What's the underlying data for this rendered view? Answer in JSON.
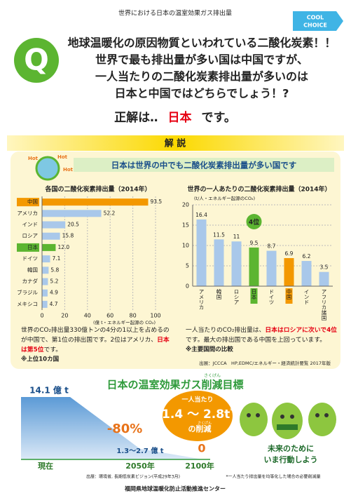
{
  "header": {
    "title": "世界における日本の温室効果ガス排出量",
    "logo": [
      "COOL",
      "CHOICE"
    ]
  },
  "question": {
    "mark": "Q",
    "lines": [
      "地球温暖化の原因物質といわれている二酸化炭素！！",
      "世界で最も排出量が多い国は中国ですが、",
      "一人当たりの二酸化炭素排出量が多いのは",
      "日本と中国ではどちらでしょう！?"
    ]
  },
  "answer": {
    "prefix": "正解は‥",
    "highlight": "日本",
    "suffix": "です。"
  },
  "section1": {
    "heading": "解 説",
    "subtitle": "日本は世界の中でも二酸化炭素排出量が多い国です",
    "hot": [
      "Hot",
      "Hot",
      "Hot"
    ]
  },
  "chart_data": [
    {
      "type": "bar",
      "orientation": "horizontal",
      "title": "各国の二酸化炭素排出量（2014年）",
      "categories": [
        "中国",
        "アメリカ",
        "インド",
        "ロシア",
        "日本",
        "ドイツ",
        "韓国",
        "カナダ",
        "ブラジル",
        "メキシコ"
      ],
      "values": [
        93.5,
        52.2,
        20.5,
        15.8,
        12.0,
        7.1,
        5.8,
        5.2,
        4.9,
        4.7
      ],
      "value_labels": [
        "93.5",
        "52.2",
        "20.5",
        "15.8",
        "12.0",
        "7.1",
        "5.8",
        "5.2",
        "4.9",
        "4.7"
      ],
      "colors": [
        "#f39800",
        "#a9c8ea",
        "#a9c8ea",
        "#a9c8ea",
        "#5cb531",
        "#a9c8ea",
        "#a9c8ea",
        "#a9c8ea",
        "#a9c8ea",
        "#a9c8ea"
      ],
      "xlim": [
        0,
        100
      ],
      "xticks": [
        0,
        20,
        40,
        60,
        80,
        100
      ],
      "xlabel": "(億 t・エネルギー起源の CO₂)",
      "grid": true
    },
    {
      "type": "bar",
      "orientation": "vertical",
      "title": "世界の一人あたりの二酸化炭素排出量（2014年）",
      "ylabel": "(t/人・エネルギー起源のCO₂)",
      "categories": [
        "アメリカ",
        "韓国",
        "ロシア",
        "日本",
        "ドイツ",
        "中国",
        "インド",
        "アフリカ諸国"
      ],
      "values": [
        16.4,
        11.5,
        11,
        9.5,
        8.7,
        6.9,
        6.2,
        3.5
      ],
      "colors": [
        "#a9c8ea",
        "#a9c8ea",
        "#a9c8ea",
        "#5cb531",
        "#a9c8ea",
        "#f39800",
        "#a9c8ea",
        "#a9c8ea"
      ],
      "ylim": [
        0,
        20
      ],
      "yticks": [
        0,
        5,
        10,
        15,
        20
      ],
      "grid": true,
      "annotation": {
        "text": "4位",
        "category": "日本"
      }
    }
  ],
  "notes": {
    "left": [
      [
        {
          "text": "世界のCO₂排出量330億トンの4分の1以上を占めるの"
        }
      ],
      [
        {
          "text": "が中国で、第1位の排出国です。2位はアメリカ、"
        },
        {
          "text": "日本",
          "emphasis": true
        }
      ],
      [
        {
          "text": "は第5位",
          "emphasis": true
        },
        {
          "text": "です。"
        }
      ]
    ],
    "left_note": "※上位10カ国",
    "right": [
      [
        {
          "text": "一人当たりのCO₂排出量は、"
        },
        {
          "text": "日本はロシアに次いで4位",
          "emphasis": true
        }
      ],
      [
        {
          "text": "です。最大の排出国である中国を上回っています。"
        }
      ]
    ],
    "right_note": "※主要国間の比較",
    "source": "出展：JCCCA　HP,EDMC/エネルギー・経済統計要覧 2017年版"
  },
  "target": {
    "title": "日本の温室効果ガス削減目標",
    "title_ruby": "さくげん",
    "now": {
      "label": "現在",
      "amount": "14.1 億 t"
    },
    "y2050": {
      "label": "2050年",
      "amount": "1.3～2.7 億 t",
      "change": "-80%"
    },
    "y2100": {
      "label": "2100年",
      "amount": "0"
    },
    "per_capita": {
      "head": "一人当たり",
      "amount": "1.4 ～ 2.8t",
      "star": "*",
      "tail": "の削減",
      "tail_ruby": "さくげん"
    },
    "slogan": [
      "未来のために",
      "いま行動しよう"
    ]
  },
  "footer": {
    "source": "出展：環境省, 長期低炭素ビジョン(平成29年3月)",
    "footnote": "*一人当たり排出量を均等化した場合の必要削減量",
    "org": "福岡県地球温暖化防止活動推進センター"
  }
}
